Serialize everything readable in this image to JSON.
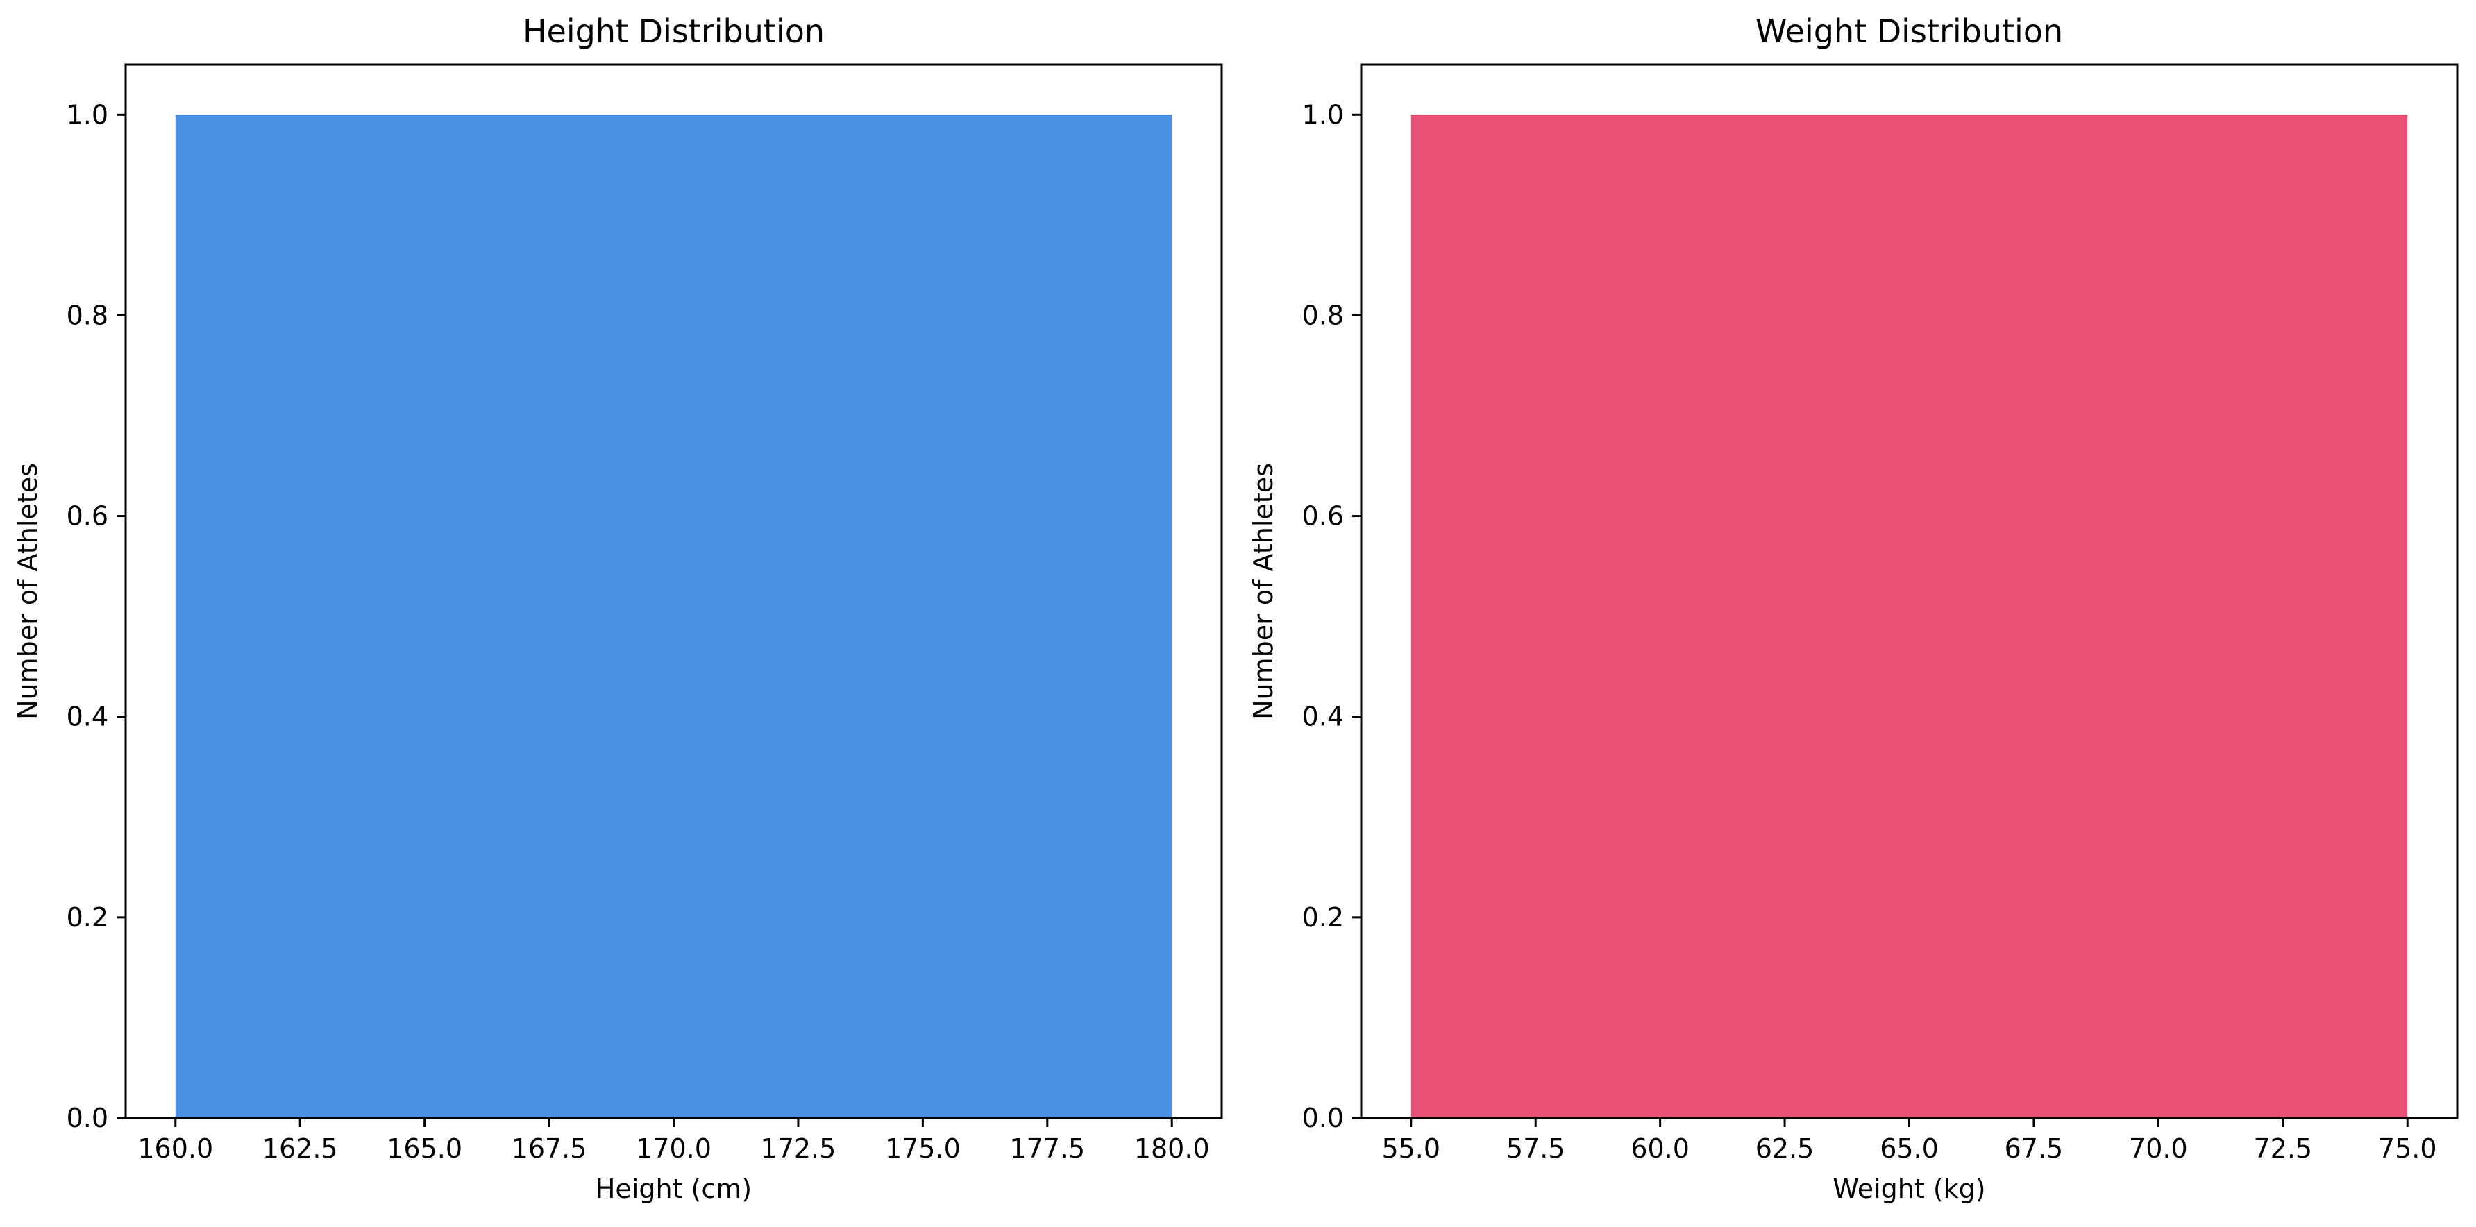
{
  "chart_data": [
    {
      "type": "bar",
      "title": "Height Distribution",
      "xlabel": "Height (cm)",
      "ylabel": "Number of Athletes",
      "color": "#4a90e2",
      "xlim": [
        159,
        181
      ],
      "ylim": [
        0,
        1.05
      ],
      "bars": [
        {
          "x0": 160.0,
          "x1": 180.0,
          "value": 1.0
        }
      ],
      "xticks": [
        160.0,
        162.5,
        165.0,
        167.5,
        170.0,
        172.5,
        175.0,
        177.5,
        180.0
      ],
      "xtick_labels": [
        "160.0",
        "162.5",
        "165.0",
        "167.5",
        "170.0",
        "172.5",
        "175.0",
        "177.5",
        "180.0"
      ],
      "yticks": [
        0.0,
        0.2,
        0.4,
        0.6,
        0.8,
        1.0
      ],
      "ytick_labels": [
        "0.0",
        "0.2",
        "0.4",
        "0.6",
        "0.8",
        "1.0"
      ],
      "grid": false
    },
    {
      "type": "bar",
      "title": "Weight Distribution",
      "xlabel": "Weight (kg)",
      "ylabel": "Number of Athletes",
      "color": "#e85075",
      "xlim": [
        54,
        76
      ],
      "ylim": [
        0,
        1.05
      ],
      "bars": [
        {
          "x0": 55.0,
          "x1": 75.0,
          "value": 1.0
        }
      ],
      "xticks": [
        55.0,
        57.5,
        60.0,
        62.5,
        65.0,
        67.5,
        70.0,
        72.5,
        75.0
      ],
      "xtick_labels": [
        "55.0",
        "57.5",
        "60.0",
        "62.5",
        "65.0",
        "67.5",
        "70.0",
        "72.5",
        "75.0"
      ],
      "yticks": [
        0.0,
        0.2,
        0.4,
        0.6,
        0.8,
        1.0
      ],
      "ytick_labels": [
        "0.0",
        "0.2",
        "0.4",
        "0.6",
        "0.8",
        "1.0"
      ],
      "grid": false
    }
  ]
}
